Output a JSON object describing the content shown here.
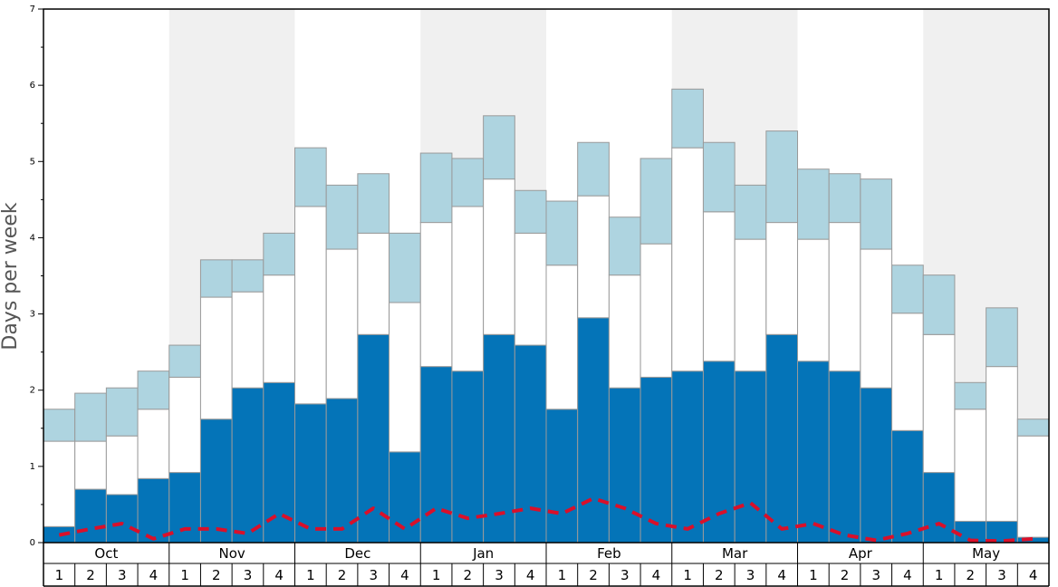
{
  "chart_data": {
    "type": "bar",
    "stacked": true,
    "y_label": "Days per week",
    "categories": [
      "1",
      "2",
      "3",
      "4",
      "1",
      "2",
      "3",
      "4",
      "1",
      "2",
      "3",
      "4",
      "1",
      "2",
      "3",
      "4",
      "1",
      "2",
      "3",
      "4",
      "1",
      "2",
      "3",
      "4",
      "1",
      "2",
      "3",
      "4",
      "1",
      "2",
      "3",
      "4"
    ],
    "months": [
      "Oct",
      "Nov",
      "Dec",
      "Jan",
      "Feb",
      "Mar",
      "Apr",
      "May"
    ],
    "shaded_month_color": "#f0f0f0",
    "series": [
      {
        "color": "#0474b8",
        "values": [
          0.21,
          0.7,
          0.63,
          0.84,
          0.92,
          1.62,
          2.03,
          2.1,
          1.82,
          1.89,
          2.73,
          1.19,
          2.31,
          2.25,
          2.73,
          2.59,
          1.75,
          2.95,
          2.03,
          2.17,
          2.25,
          2.38,
          2.25,
          2.73,
          2.38,
          2.25,
          2.03,
          1.47,
          0.92,
          0.28,
          0.28,
          0.07
        ]
      },
      {
        "color": "#ffffff",
        "values": [
          1.12,
          0.63,
          0.77,
          0.91,
          1.25,
          1.6,
          1.26,
          1.41,
          2.59,
          1.96,
          1.33,
          1.96,
          1.89,
          2.16,
          2.04,
          1.47,
          1.89,
          1.6,
          1.48,
          1.75,
          2.93,
          1.96,
          1.73,
          1.47,
          1.6,
          1.95,
          1.82,
          1.54,
          1.81,
          1.47,
          2.03,
          1.33
        ]
      },
      {
        "color": "#aed4e0",
        "values": [
          0.42,
          0.63,
          0.63,
          0.5,
          0.42,
          0.49,
          0.42,
          0.55,
          0.77,
          0.84,
          0.78,
          0.91,
          0.91,
          0.63,
          0.83,
          0.56,
          0.84,
          0.7,
          0.76,
          1.12,
          0.77,
          0.91,
          0.71,
          1.2,
          0.92,
          0.64,
          0.92,
          0.63,
          0.78,
          0.35,
          0.77,
          0.22
        ]
      }
    ],
    "line": {
      "color": "#d9102a",
      "values": [
        0.1,
        0.18,
        0.25,
        0.05,
        0.18,
        0.18,
        0.12,
        0.38,
        0.18,
        0.18,
        0.45,
        0.18,
        0.45,
        0.32,
        0.38,
        0.45,
        0.38,
        0.58,
        0.45,
        0.25,
        0.18,
        0.38,
        0.52,
        0.18,
        0.25,
        0.1,
        0.03,
        0.12,
        0.25,
        0.03,
        0.02,
        0.05
      ]
    },
    "ylim": [
      0,
      7
    ],
    "yticks": [
      0,
      1,
      2,
      3,
      4,
      5,
      6,
      7
    ],
    "yminorticks": [
      0.5,
      1.5,
      2.5,
      3.5,
      4.5,
      5.5,
      6.5
    ]
  }
}
